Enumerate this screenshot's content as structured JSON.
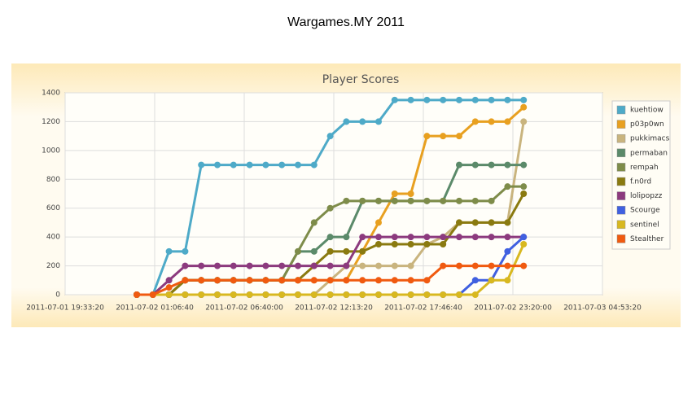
{
  "page_title": "Wargames.MY 2011",
  "chart_data": {
    "type": "line",
    "title": "Player Scores",
    "x": [
      "2011-07-02 00:00:00",
      "2011-07-02 01:00:00",
      "2011-07-02 02:00:00",
      "2011-07-02 03:00:00",
      "2011-07-02 04:00:00",
      "2011-07-02 05:00:00",
      "2011-07-02 06:00:00",
      "2011-07-02 07:00:00",
      "2011-07-02 08:00:00",
      "2011-07-02 09:00:00",
      "2011-07-02 10:00:00",
      "2011-07-02 11:00:00",
      "2011-07-02 12:00:00",
      "2011-07-02 13:00:00",
      "2011-07-02 14:00:00",
      "2011-07-02 15:00:00",
      "2011-07-02 16:00:00",
      "2011-07-02 17:00:00",
      "2011-07-02 18:00:00",
      "2011-07-02 19:00:00",
      "2011-07-02 20:00:00",
      "2011-07-02 21:00:00",
      "2011-07-02 22:00:00",
      "2011-07-02 23:00:00",
      "2011-07-03 00:00:00"
    ],
    "xlim": [
      "2011-07-01 19:33:20",
      "2011-07-03 04:53:20"
    ],
    "xticks": [
      "2011-07-01 19:33:20",
      "2011-07-02 01:06:40",
      "2011-07-02 06:40:00",
      "2011-07-02 12:13:20",
      "2011-07-02 17:46:40",
      "2011-07-02 23:20:00",
      "2011-07-03 04:53:20"
    ],
    "ylim": [
      0,
      1400
    ],
    "yticks": [
      0,
      200,
      400,
      600,
      800,
      1000,
      1200,
      1400
    ],
    "grid": true,
    "legend": "right",
    "series": [
      {
        "name": "kuehtiow",
        "color": "#4eaac8",
        "values": [
          0,
          0,
          300,
          300,
          900,
          900,
          900,
          900,
          900,
          900,
          900,
          900,
          1100,
          1200,
          1200,
          1200,
          1350,
          1350,
          1350,
          1350,
          1350,
          1350,
          1350,
          1350,
          1350
        ]
      },
      {
        "name": "p03p0wn",
        "color": "#e8a020",
        "values": [
          0,
          0,
          0,
          100,
          100,
          100,
          100,
          100,
          100,
          100,
          100,
          100,
          100,
          100,
          300,
          500,
          700,
          700,
          1100,
          1100,
          1100,
          1200,
          1200,
          1200,
          1300
        ]
      },
      {
        "name": "pukkimacs",
        "color": "#c9b47e",
        "values": [
          0,
          0,
          0,
          0,
          0,
          0,
          0,
          0,
          0,
          0,
          0,
          0,
          100,
          200,
          200,
          200,
          200,
          200,
          350,
          400,
          500,
          500,
          500,
          500,
          1200
        ]
      },
      {
        "name": "permaban",
        "color": "#5b8a6a",
        "values": [
          0,
          0,
          0,
          100,
          100,
          100,
          100,
          100,
          100,
          100,
          300,
          300,
          400,
          400,
          650,
          650,
          650,
          650,
          650,
          650,
          900,
          900,
          900,
          900,
          900
        ]
      },
      {
        "name": "rempah",
        "color": "#7e8c4a",
        "values": [
          0,
          0,
          0,
          100,
          100,
          100,
          100,
          100,
          100,
          100,
          300,
          500,
          600,
          650,
          650,
          650,
          650,
          650,
          650,
          650,
          650,
          650,
          650,
          750,
          750
        ]
      },
      {
        "name": "f.n0rd",
        "color": "#8a7a10",
        "values": [
          0,
          0,
          0,
          100,
          100,
          100,
          100,
          100,
          100,
          100,
          100,
          200,
          300,
          300,
          300,
          350,
          350,
          350,
          350,
          350,
          500,
          500,
          500,
          500,
          700
        ]
      },
      {
        "name": "lolipopzz",
        "color": "#8c3a7e",
        "values": [
          0,
          0,
          100,
          200,
          200,
          200,
          200,
          200,
          200,
          200,
          200,
          200,
          200,
          200,
          400,
          400,
          400,
          400,
          400,
          400,
          400,
          400,
          400,
          400,
          400
        ]
      },
      {
        "name": "Scourge",
        "color": "#4060e0",
        "values": [
          0,
          0,
          0,
          0,
          0,
          0,
          0,
          0,
          0,
          0,
          0,
          0,
          0,
          0,
          0,
          0,
          0,
          0,
          0,
          0,
          0,
          100,
          100,
          300,
          400
        ]
      },
      {
        "name": "sentinel",
        "color": "#d8b820",
        "values": [
          0,
          0,
          0,
          0,
          0,
          0,
          0,
          0,
          0,
          0,
          0,
          0,
          0,
          0,
          0,
          0,
          0,
          0,
          0,
          0,
          0,
          0,
          100,
          100,
          350
        ]
      },
      {
        "name": "Stealther",
        "color": "#f05a10",
        "values": [
          0,
          0,
          50,
          100,
          100,
          100,
          100,
          100,
          100,
          100,
          100,
          100,
          100,
          100,
          100,
          100,
          100,
          100,
          100,
          200,
          200,
          200,
          200,
          200,
          200
        ]
      }
    ]
  }
}
